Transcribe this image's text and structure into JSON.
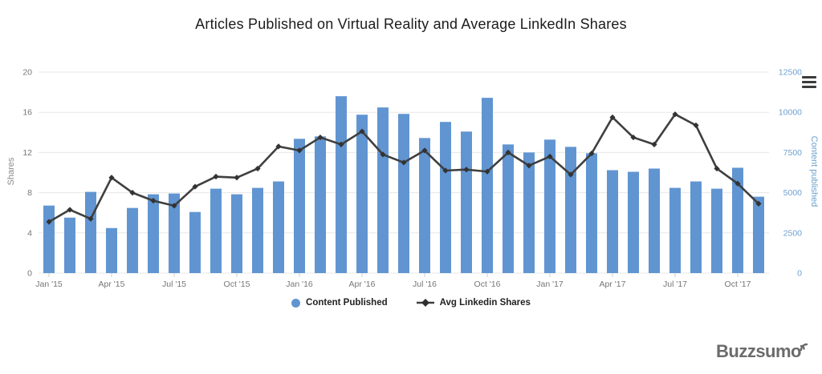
{
  "title": "Articles Published on Virtual Reality and Average LinkedIn Shares",
  "legend": {
    "items": [
      {
        "label": "Content Published",
        "marker": "circle",
        "color": "#6195d1"
      },
      {
        "label": "Avg Linkedin Shares",
        "marker": "line-diamond",
        "color": "#3f3f3f"
      }
    ]
  },
  "branding": {
    "logo_text": "Buzzsumo"
  },
  "icons": {
    "export_menu": "hamburger-icon",
    "logo_mark": "signal-arcs-icon"
  },
  "colors": {
    "background": "#ffffff",
    "bar": "#6195d1",
    "line": "#3f3f3f",
    "marker": "#333333",
    "grid": "#e7e7e7",
    "axis_line": "#d9d9d9",
    "tick": "#cccccc",
    "axis_text": "#767676",
    "right_axis_text": "#6d9fd0",
    "title_text": "#1c1c1c",
    "legend_text": "#222222",
    "logo": "#6b6b6b"
  },
  "chart_data": {
    "type": "bar",
    "title": "Articles Published on Virtual Reality and Average LinkedIn Shares",
    "grid": "horizontal",
    "legend_position": "bottom",
    "categories": [
      "Jan '15",
      "Feb '15",
      "Mar '15",
      "Apr '15",
      "May '15",
      "Jun '15",
      "Jul '15",
      "Aug '15",
      "Sep '15",
      "Oct '15",
      "Nov '15",
      "Dec '15",
      "Jan '16",
      "Feb '16",
      "Mar '16",
      "Apr '16",
      "May '16",
      "Jun '16",
      "Jul '16",
      "Aug '16",
      "Sep '16",
      "Oct '16",
      "Nov '16",
      "Dec '16",
      "Jan '17",
      "Feb '17",
      "Mar '17",
      "Apr '17",
      "May '17",
      "Jun '17",
      "Jul '17",
      "Aug '17",
      "Sep '17",
      "Oct '17",
      "Nov '17"
    ],
    "x_tick_label_indices": [
      0,
      3,
      6,
      9,
      12,
      15,
      18,
      21,
      24,
      27,
      30,
      33
    ],
    "left_axis": {
      "title": "Shares",
      "min": 0,
      "max": 20,
      "ticks": [
        0,
        4,
        8,
        12,
        16,
        20
      ]
    },
    "right_axis": {
      "title": "Content published",
      "min": 0,
      "max": 12500,
      "ticks": [
        0,
        2500,
        5000,
        7500,
        10000,
        12500
      ]
    },
    "series": [
      {
        "name": "Content Published",
        "type": "bar",
        "axis": "right",
        "color": "#6195d1",
        "values": [
          4200,
          3450,
          5050,
          2800,
          4050,
          4900,
          4950,
          3800,
          5250,
          4900,
          5300,
          5700,
          8350,
          8500,
          11000,
          9850,
          10300,
          9900,
          8400,
          9400,
          8800,
          10900,
          8000,
          7500,
          8300,
          7850,
          7450,
          6400,
          6300,
          6500,
          5300,
          5700,
          5250,
          6550,
          4750
        ]
      },
      {
        "name": "Avg Linkedin Shares",
        "type": "line",
        "axis": "left",
        "color": "#3f3f3f",
        "values": [
          5.1,
          6.3,
          5.4,
          9.5,
          8.0,
          7.2,
          6.7,
          8.6,
          9.6,
          9.5,
          10.4,
          12.6,
          12.2,
          13.5,
          12.8,
          14.1,
          11.8,
          11.0,
          12.2,
          10.2,
          10.3,
          10.1,
          12.0,
          10.7,
          11.6,
          9.8,
          11.9,
          15.5,
          13.5,
          12.8,
          15.8,
          14.7,
          10.4,
          8.9,
          6.9
        ]
      }
    ]
  }
}
